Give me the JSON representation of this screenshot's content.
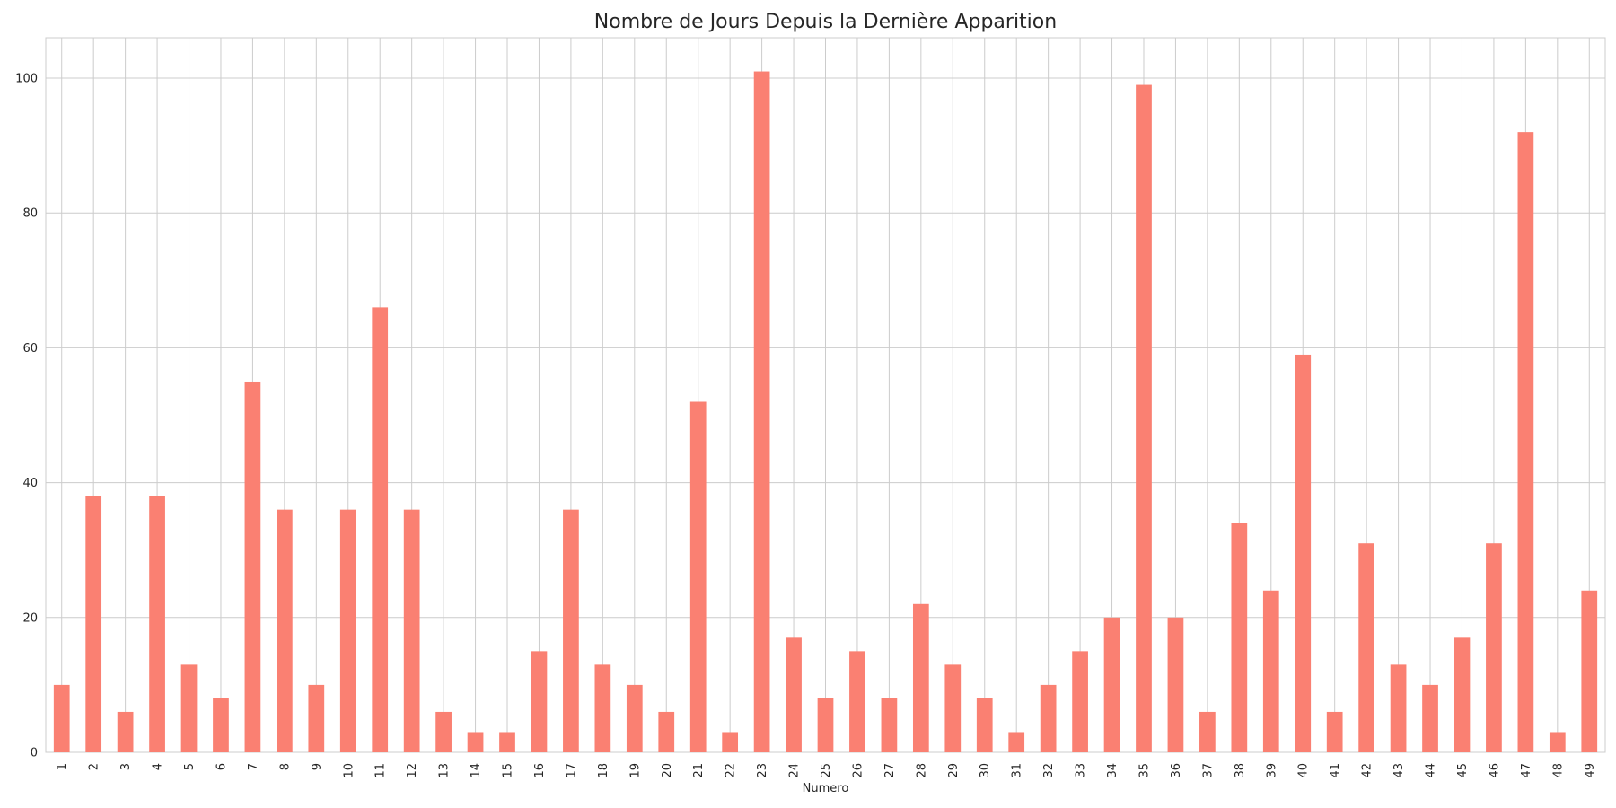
{
  "chart_data": {
    "type": "bar",
    "title": "Nombre de Jours Depuis la Dernière Apparition",
    "xlabel": "Numero",
    "ylabel": "",
    "categories": [
      "1",
      "2",
      "3",
      "4",
      "5",
      "6",
      "7",
      "8",
      "9",
      "10",
      "11",
      "12",
      "13",
      "14",
      "15",
      "16",
      "17",
      "18",
      "19",
      "20",
      "21",
      "22",
      "23",
      "24",
      "25",
      "26",
      "27",
      "28",
      "29",
      "30",
      "31",
      "32",
      "33",
      "34",
      "35",
      "36",
      "37",
      "38",
      "39",
      "40",
      "41",
      "42",
      "43",
      "44",
      "45",
      "46",
      "47",
      "48",
      "49"
    ],
    "values": [
      10,
      38,
      6,
      38,
      13,
      8,
      55,
      36,
      10,
      36,
      66,
      36,
      6,
      3,
      3,
      15,
      36,
      13,
      10,
      6,
      52,
      3,
      101,
      17,
      8,
      15,
      8,
      22,
      13,
      8,
      3,
      10,
      15,
      20,
      99,
      20,
      6,
      34,
      24,
      59,
      6,
      31,
      13,
      10,
      17,
      31,
      92,
      3,
      24
    ],
    "yticks": [
      0,
      20,
      40,
      60,
      80,
      100
    ],
    "ylim": [
      0,
      106
    ],
    "grid": true,
    "legend": "none",
    "bar_color": "#fa8072",
    "grid_color": "#cccccc"
  }
}
